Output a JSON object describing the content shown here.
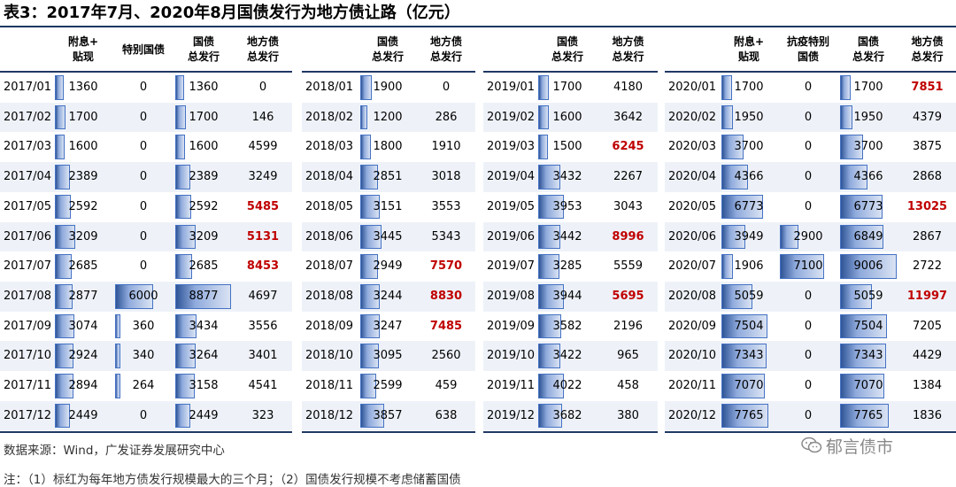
{
  "title": "表3：2017年7月、2020年8月国债发行为地方债让路（亿元）",
  "colors": {
    "rule": "#1f3864",
    "highlight": "#c00000",
    "bar": "#4472c4"
  },
  "panels": [
    {
      "year": "2017",
      "headers": [
        "",
        "附息+\n贴现",
        "特别国债",
        "国债\n总发行",
        "地方债\n总发行"
      ],
      "rows": [
        {
          "month": "2017/01",
          "a": "1360",
          "b": "0",
          "c": "1360",
          "d": "0",
          "red": false
        },
        {
          "month": "2017/02",
          "a": "1700",
          "b": "0",
          "c": "1700",
          "d": "146",
          "red": false
        },
        {
          "month": "2017/03",
          "a": "1600",
          "b": "0",
          "c": "1600",
          "d": "4599",
          "red": false
        },
        {
          "month": "2017/04",
          "a": "2389",
          "b": "0",
          "c": "2389",
          "d": "3249",
          "red": false
        },
        {
          "month": "2017/05",
          "a": "2592",
          "b": "0",
          "c": "2592",
          "d": "5485",
          "red": true
        },
        {
          "month": "2017/06",
          "a": "3209",
          "b": "0",
          "c": "3209",
          "d": "5131",
          "red": true
        },
        {
          "month": "2017/07",
          "a": "2685",
          "b": "0",
          "c": "2685",
          "d": "8453",
          "red": true
        },
        {
          "month": "2017/08",
          "a": "2877",
          "b": "6000",
          "c": "8877",
          "d": "4697",
          "red": false
        },
        {
          "month": "2017/09",
          "a": "3074",
          "b": "360",
          "c": "3434",
          "d": "3556",
          "red": false
        },
        {
          "month": "2017/10",
          "a": "2924",
          "b": "340",
          "c": "3264",
          "d": "3401",
          "red": false
        },
        {
          "month": "2017/11",
          "a": "2894",
          "b": "264",
          "c": "3158",
          "d": "4541",
          "red": false
        },
        {
          "month": "2017/12",
          "a": "2449",
          "b": "0",
          "c": "2449",
          "d": "323",
          "red": false
        }
      ]
    },
    {
      "year": "2018",
      "headers": [
        "",
        "国债\n总发行",
        "地方债\n总发行"
      ],
      "rows": [
        {
          "month": "2018/01",
          "c": "1900",
          "d": "0",
          "red": false
        },
        {
          "month": "2018/02",
          "c": "1200",
          "d": "286",
          "red": false
        },
        {
          "month": "2018/03",
          "c": "1800",
          "d": "1910",
          "red": false
        },
        {
          "month": "2018/04",
          "c": "2851",
          "d": "3018",
          "red": false
        },
        {
          "month": "2018/05",
          "c": "3151",
          "d": "3553",
          "red": false
        },
        {
          "month": "2018/06",
          "c": "3445",
          "d": "5343",
          "red": false
        },
        {
          "month": "2018/07",
          "c": "2949",
          "d": "7570",
          "red": true
        },
        {
          "month": "2018/08",
          "c": "3244",
          "d": "8830",
          "red": true
        },
        {
          "month": "2018/09",
          "c": "3247",
          "d": "7485",
          "red": true
        },
        {
          "month": "2018/10",
          "c": "3095",
          "d": "2560",
          "red": false
        },
        {
          "month": "2018/11",
          "c": "2599",
          "d": "459",
          "red": false
        },
        {
          "month": "2018/12",
          "c": "3857",
          "d": "638",
          "red": false
        }
      ]
    },
    {
      "year": "2019",
      "headers": [
        "",
        "国债\n总发行",
        "地方债\n总发行"
      ],
      "rows": [
        {
          "month": "2019/01",
          "c": "1700",
          "d": "4180",
          "red": false
        },
        {
          "month": "2019/02",
          "c": "1600",
          "d": "3642",
          "red": false
        },
        {
          "month": "2019/03",
          "c": "1500",
          "d": "6245",
          "red": true
        },
        {
          "month": "2019/04",
          "c": "3432",
          "d": "2267",
          "red": false
        },
        {
          "month": "2019/05",
          "c": "3953",
          "d": "3043",
          "red": false
        },
        {
          "month": "2019/06",
          "c": "3442",
          "d": "8996",
          "red": true
        },
        {
          "month": "2019/07",
          "c": "3285",
          "d": "5559",
          "red": false
        },
        {
          "month": "2019/08",
          "c": "3944",
          "d": "5695",
          "red": true
        },
        {
          "month": "2019/09",
          "c": "3582",
          "d": "2196",
          "red": false
        },
        {
          "month": "2019/10",
          "c": "3422",
          "d": "965",
          "red": false
        },
        {
          "month": "2019/11",
          "c": "4022",
          "d": "458",
          "red": false
        },
        {
          "month": "2019/12",
          "c": "3682",
          "d": "380",
          "red": false
        }
      ]
    },
    {
      "year": "2020",
      "headers": [
        "",
        "附息+\n贴现",
        "抗疫特别\n国债",
        "国债\n总发行",
        "地方债\n总发行"
      ],
      "rows": [
        {
          "month": "2020/01",
          "a": "1700",
          "b": "0",
          "c": "1700",
          "d": "7851",
          "red": true
        },
        {
          "month": "2020/02",
          "a": "1950",
          "b": "0",
          "c": "1950",
          "d": "4379",
          "red": false
        },
        {
          "month": "2020/03",
          "a": "3700",
          "b": "0",
          "c": "3700",
          "d": "3875",
          "red": false
        },
        {
          "month": "2020/04",
          "a": "4366",
          "b": "0",
          "c": "4366",
          "d": "2868",
          "red": false
        },
        {
          "month": "2020/05",
          "a": "6773",
          "b": "0",
          "c": "6773",
          "d": "13025",
          "red": true
        },
        {
          "month": "2020/06",
          "a": "3949",
          "b": "2900",
          "c": "6849",
          "d": "2867",
          "red": false
        },
        {
          "month": "2020/07",
          "a": "1906",
          "b": "7100",
          "c": "9006",
          "d": "2722",
          "red": false
        },
        {
          "month": "2020/08",
          "a": "5059",
          "b": "0",
          "c": "5059",
          "d": "11997",
          "red": true
        },
        {
          "month": "2020/09",
          "a": "7504",
          "b": "0",
          "c": "7504",
          "d": "7205",
          "red": false
        },
        {
          "month": "2020/10",
          "a": "7343",
          "b": "0",
          "c": "7343",
          "d": "4429",
          "red": false
        },
        {
          "month": "2020/11",
          "a": "7070",
          "b": "0",
          "c": "7070",
          "d": "1384",
          "red": false
        },
        {
          "month": "2020/12",
          "a": "7765",
          "b": "0",
          "c": "7765",
          "d": "1836",
          "red": false
        }
      ]
    }
  ],
  "source": "数据来源：Wind，广发证券发展研究中心",
  "note": "注：（1）标红为每年地方债发行规模最大的三个月；（2）国债发行规模不考虑储蓄国债",
  "watermark": "郁言债市"
}
